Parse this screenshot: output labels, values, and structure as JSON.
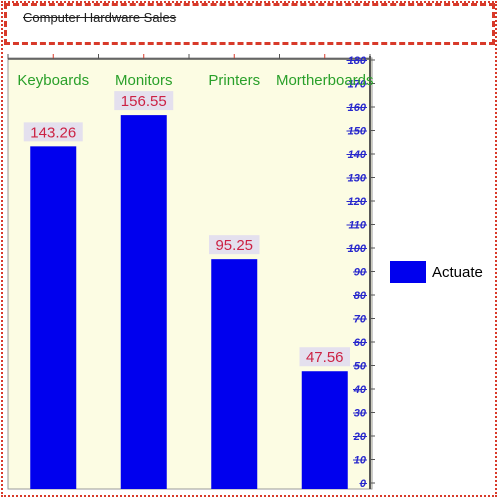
{
  "colors": {
    "plot_background": "#fcfce3",
    "bar": "#0000ee",
    "frame": "#d83a2a",
    "category_label": "#2aa02a",
    "value_label_text": "#cc2244",
    "value_label_background": "#e4e0ee",
    "tick_label": "#2828cc"
  },
  "chart_data": {
    "type": "bar",
    "title": "Computer Hardware Sales",
    "categories": [
      "Keyboards",
      "Monitors",
      "Printers",
      "Mortherboards"
    ],
    "series": [
      {
        "name": "Actuate",
        "values": [
          143.26,
          156.55,
          95.25,
          47.56
        ]
      }
    ],
    "value_labels": [
      "143.26",
      "156.55",
      "95.25",
      "47.56"
    ],
    "ylim": [
      0,
      180
    ],
    "y_ticks": [
      "0",
      "10",
      "20",
      "30",
      "40",
      "50",
      "60",
      "70",
      "80",
      "90",
      "100",
      "110",
      "120",
      "130",
      "140",
      "150",
      "160",
      "170",
      "180"
    ],
    "y_axis_position": "right",
    "category_labels_position": "top",
    "legend_position": "right",
    "grid": false
  }
}
